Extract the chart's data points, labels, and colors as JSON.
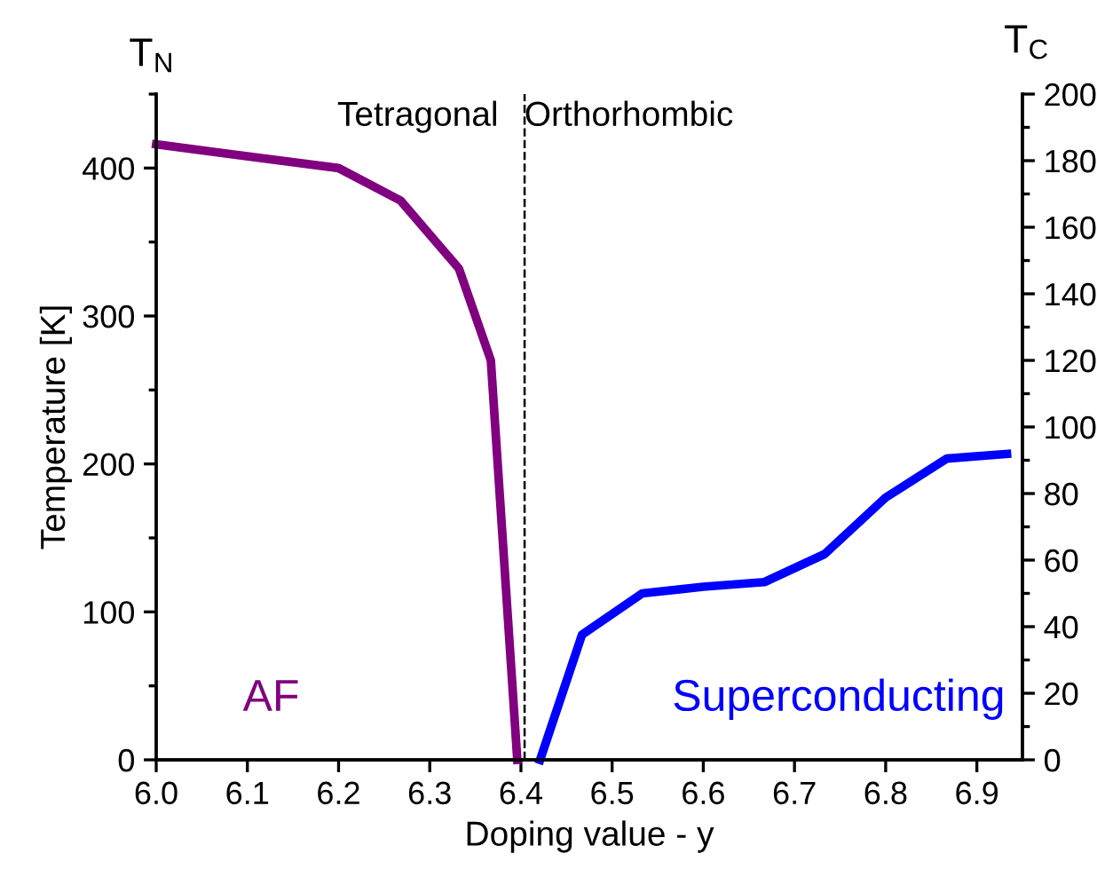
{
  "chart_data": {
    "type": "line",
    "xlabel": "Doping value - y",
    "ylabel": "Temperature [K]",
    "xlim": [
      6.0,
      6.95
    ],
    "xticks": [
      {
        "value": 6.0,
        "label": "6.0"
      },
      6.1,
      6.2,
      6.3,
      6.4,
      6.5,
      6.6,
      6.7,
      6.8,
      6.9
    ],
    "ylim": [
      0,
      450
    ],
    "yticks": [
      0,
      {
        "value": 50,
        "label": null
      },
      100,
      {
        "value": 150,
        "label": null
      },
      200,
      {
        "value": 250,
        "label": null
      },
      300,
      {
        "value": 350,
        "label": null
      },
      400,
      {
        "value": 450,
        "label": null
      }
    ],
    "y2lim": [
      0,
      200
    ],
    "y2ticks": [
      0,
      {
        "value": 10,
        "label": null
      },
      20,
      {
        "value": 30,
        "label": null
      },
      40,
      {
        "value": 50,
        "label": null
      },
      60,
      {
        "value": 70,
        "label": null
      },
      80,
      {
        "value": 90,
        "label": null
      },
      100,
      {
        "value": 110,
        "label": null
      },
      120,
      {
        "value": 130,
        "label": null
      },
      140,
      {
        "value": 150,
        "label": null
      },
      160,
      {
        "value": 170,
        "label": null
      },
      180,
      {
        "value": 190,
        "label": null
      },
      200
    ],
    "series": [
      {
        "name": "AF",
        "color": "#800080",
        "x": [
          6.0,
          6.2,
          6.268,
          6.332,
          6.367,
          6.396
        ],
        "values": [
          416,
          400,
          378,
          332,
          270,
          0
        ]
      },
      {
        "name": "Superconducting",
        "color": "#0000ff",
        "axis": "y2",
        "x": [
          6.421,
          6.467,
          6.533,
          6.6,
          6.667,
          6.733,
          6.8,
          6.867,
          6.933
        ],
        "values": [
          0,
          37.6,
          50,
          52,
          53.4,
          61.8,
          78.8,
          90.5,
          91.9
        ]
      }
    ],
    "ref_lines": [
      {
        "axis": "x",
        "value": 6.404,
        "label": null,
        "color": "#000000",
        "line_style": "dashed"
      }
    ],
    "annotations": [
      "T$_{N}$",
      "T$_{C}$",
      "Tetragonal",
      "Orthorhombic"
    ],
    "grid": false,
    "legend": false,
    "marker": "none",
    "line_style": "solid"
  }
}
